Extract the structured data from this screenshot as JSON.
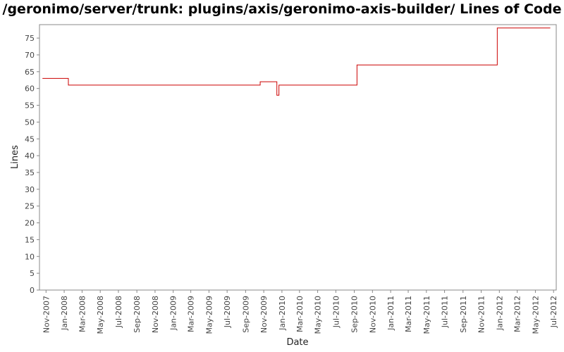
{
  "chart_data": {
    "type": "line",
    "title": "/geronimo/server/trunk: plugins/axis/geronimo-axis-builder/ Lines of Code",
    "xlabel": "Date",
    "ylabel": "Lines",
    "ylim": [
      0,
      79
    ],
    "yticks": [
      0,
      5,
      10,
      15,
      20,
      25,
      30,
      35,
      40,
      45,
      50,
      55,
      60,
      65,
      70,
      75
    ],
    "xlim": [
      "2007-10-10",
      "2012-07-10"
    ],
    "xticks": [
      {
        "date": "2007-11-01",
        "label": "Nov-2007"
      },
      {
        "date": "2008-01-01",
        "label": "Jan-2008"
      },
      {
        "date": "2008-03-01",
        "label": "Mar-2008"
      },
      {
        "date": "2008-05-01",
        "label": "May-2008"
      },
      {
        "date": "2008-07-01",
        "label": "Jul-2008"
      },
      {
        "date": "2008-09-01",
        "label": "Sep-2008"
      },
      {
        "date": "2008-11-01",
        "label": "Nov-2008"
      },
      {
        "date": "2009-01-01",
        "label": "Jan-2009"
      },
      {
        "date": "2009-03-01",
        "label": "Mar-2009"
      },
      {
        "date": "2009-05-01",
        "label": "May-2009"
      },
      {
        "date": "2009-07-01",
        "label": "Jul-2009"
      },
      {
        "date": "2009-09-01",
        "label": "Sep-2009"
      },
      {
        "date": "2009-11-01",
        "label": "Nov-2009"
      },
      {
        "date": "2010-01-01",
        "label": "Jan-2010"
      },
      {
        "date": "2010-03-01",
        "label": "Mar-2010"
      },
      {
        "date": "2010-05-01",
        "label": "May-2010"
      },
      {
        "date": "2010-07-01",
        "label": "Jul-2010"
      },
      {
        "date": "2010-09-01",
        "label": "Sep-2010"
      },
      {
        "date": "2010-11-01",
        "label": "Nov-2010"
      },
      {
        "date": "2011-01-01",
        "label": "Jan-2011"
      },
      {
        "date": "2011-03-01",
        "label": "Mar-2011"
      },
      {
        "date": "2011-05-01",
        "label": "May-2011"
      },
      {
        "date": "2011-07-01",
        "label": "Jul-2011"
      },
      {
        "date": "2011-09-01",
        "label": "Sep-2011"
      },
      {
        "date": "2011-11-01",
        "label": "Nov-2011"
      },
      {
        "date": "2012-01-01",
        "label": "Jan-2012"
      },
      {
        "date": "2012-03-01",
        "label": "Mar-2012"
      },
      {
        "date": "2012-05-01",
        "label": "May-2012"
      },
      {
        "date": "2012-07-01",
        "label": "Jul-2012"
      }
    ],
    "grid": false,
    "series": [
      {
        "color": "#cc0000",
        "step": true,
        "points": [
          {
            "x": "2007-10-20",
            "y": 63
          },
          {
            "x": "2008-01-15",
            "y": 61
          },
          {
            "x": "2009-10-20",
            "y": 62
          },
          {
            "x": "2009-12-15",
            "y": 58
          },
          {
            "x": "2009-12-22",
            "y": 61
          },
          {
            "x": "2010-09-10",
            "y": 67
          },
          {
            "x": "2011-12-25",
            "y": 78
          },
          {
            "x": "2012-06-20",
            "y": 78
          }
        ]
      }
    ]
  }
}
